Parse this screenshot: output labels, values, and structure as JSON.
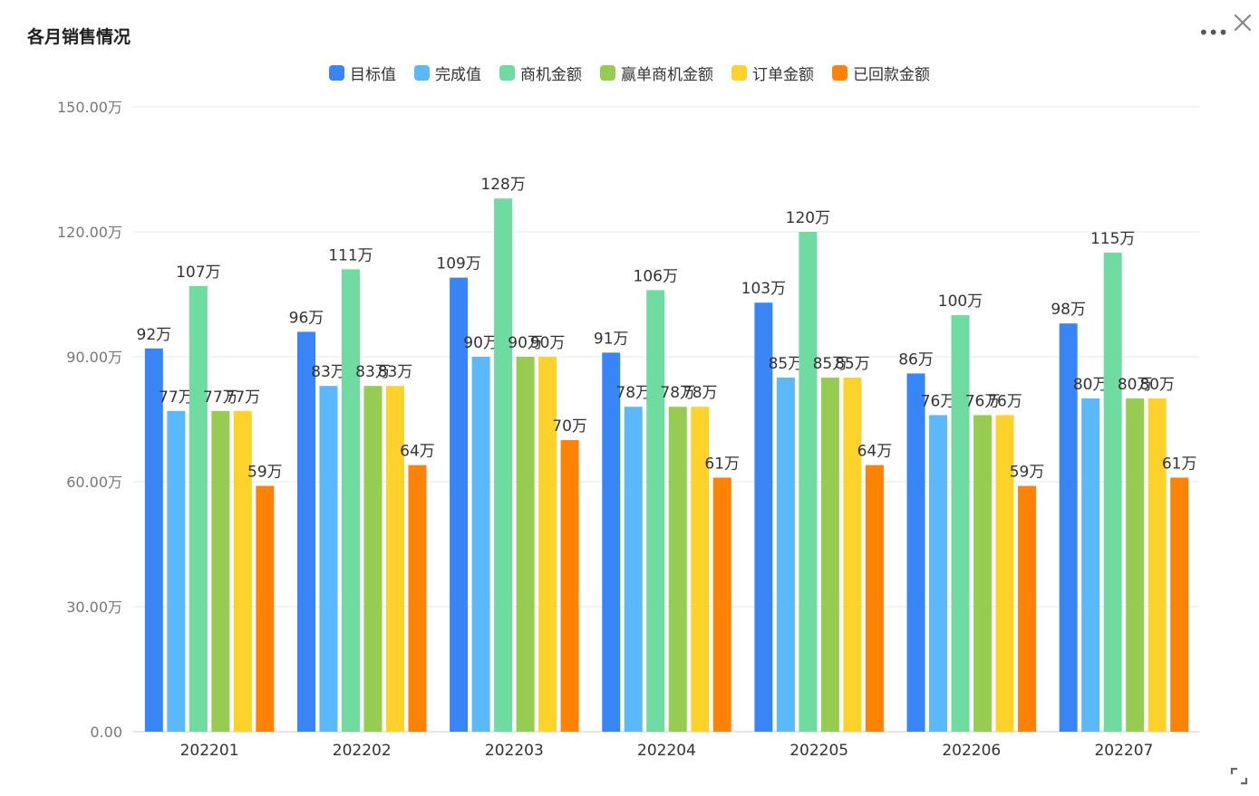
{
  "header": {
    "title": "各月销售情况",
    "more_icon": "more-horizontal-icon",
    "close_icon": "close-icon",
    "expand_icon": "expand-icon"
  },
  "chart_data": {
    "type": "bar",
    "title": "各月销售情况",
    "categories": [
      "202201",
      "202202",
      "202203",
      "202204",
      "202205",
      "202206",
      "202207"
    ],
    "ylim": [
      0,
      150
    ],
    "yticks": [
      0,
      30,
      60,
      90,
      120,
      150
    ],
    "ytick_labels": [
      "0.00",
      "30.00万",
      "60.00万",
      "90.00万",
      "120.00万",
      "150.00万"
    ],
    "label_suffix": "万",
    "grid": true,
    "legend_position": "top-center",
    "series": [
      {
        "name": "目标值",
        "color": "#3a85f6",
        "values": [
          92,
          96,
          109,
          91,
          103,
          86,
          98
        ]
      },
      {
        "name": "完成值",
        "color": "#5bb8fb",
        "values": [
          77,
          83,
          90,
          78,
          85,
          76,
          80
        ]
      },
      {
        "name": "商机金额",
        "color": "#6fdba0",
        "values": [
          107,
          111,
          128,
          106,
          120,
          100,
          115
        ]
      },
      {
        "name": "赢单商机金额",
        "color": "#96cc52",
        "values": [
          77,
          83,
          90,
          78,
          85,
          76,
          80
        ]
      },
      {
        "name": "订单金额",
        "color": "#fdd22b",
        "values": [
          77,
          83,
          90,
          78,
          85,
          76,
          80
        ]
      },
      {
        "name": "已回款金额",
        "color": "#fd8206",
        "values": [
          59,
          64,
          70,
          61,
          64,
          59,
          61
        ]
      }
    ]
  }
}
